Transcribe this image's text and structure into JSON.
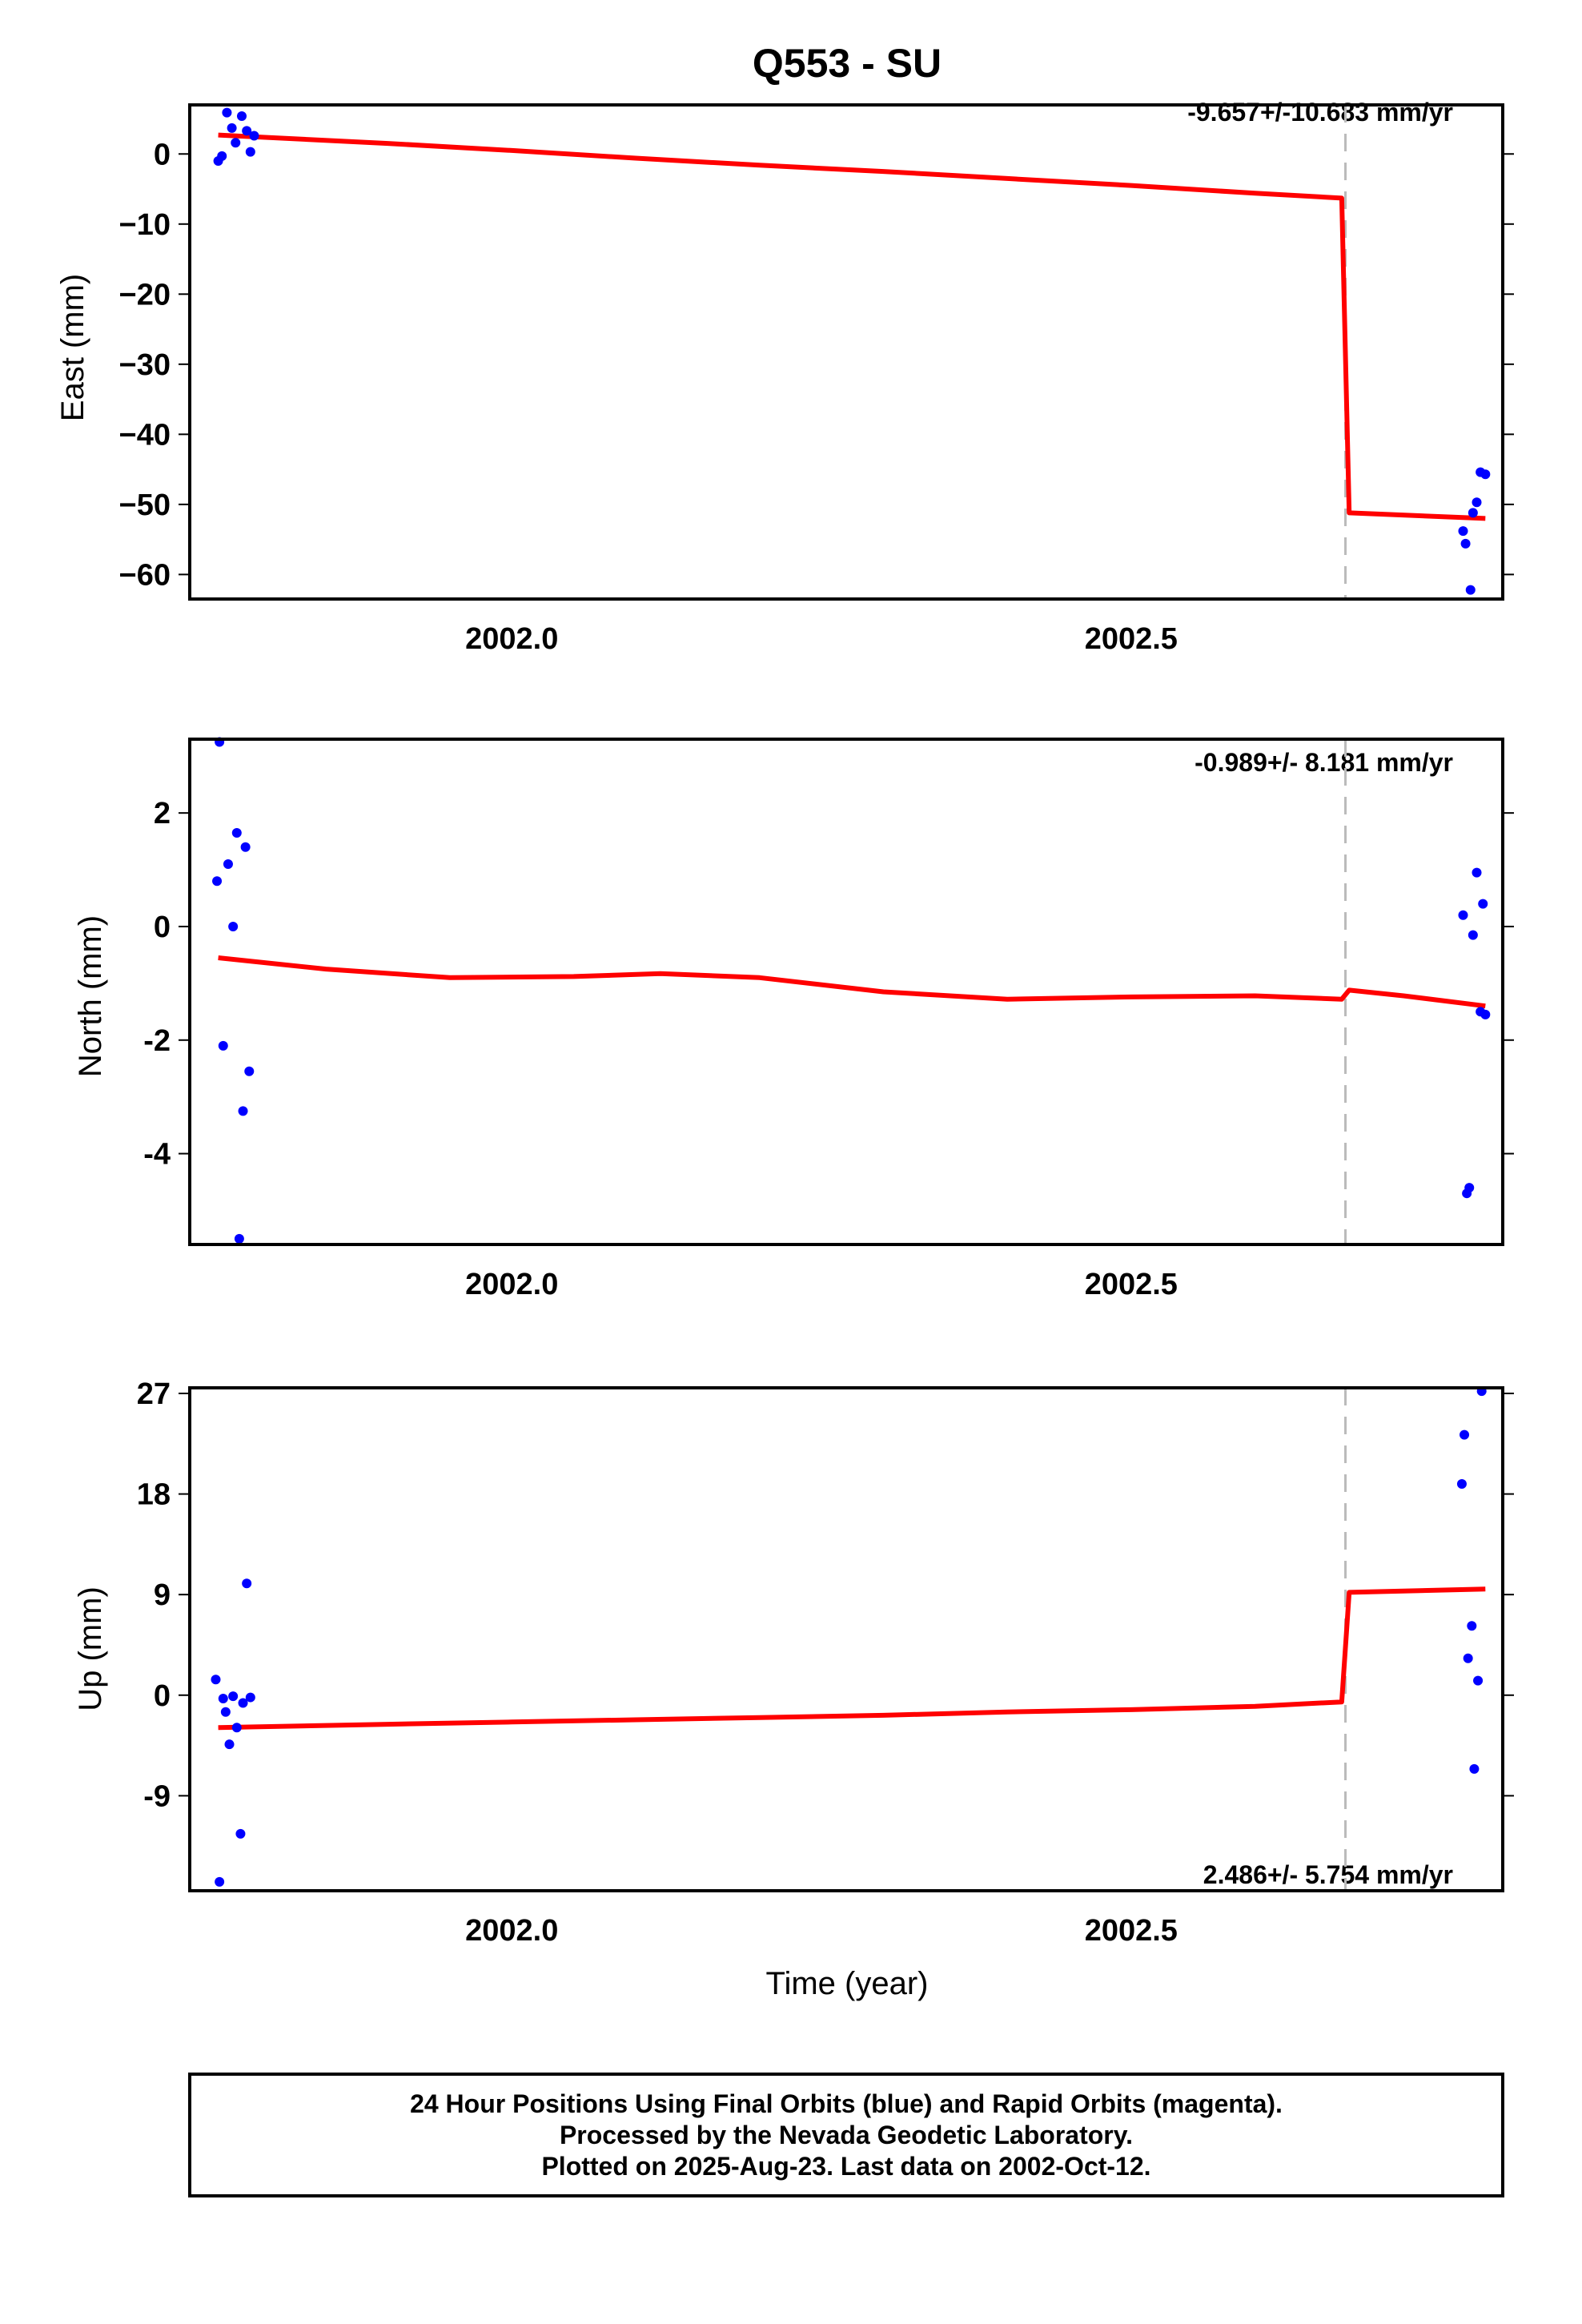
{
  "title": "Q553 - SU",
  "xlabel": "Time (year)",
  "footer": {
    "line1": "24 Hour Positions Using Final Orbits (blue) and Rapid Orbits (magenta).",
    "line2": "Processed by the Nevada Geodetic Laboratory.",
    "line3": "Plotted on 2025-Aug-23. Last data on 2002-Oct-12."
  },
  "colors": {
    "data": "#0000ff",
    "fit": "#ff0000",
    "step": "#bbbbbb",
    "frame": "#000000"
  },
  "chart_data": [
    {
      "type": "scatter",
      "ylabel": "East (mm)",
      "rate_label": "-9.657+/-10.683 mm/yr",
      "xlim": [
        2001.74,
        2002.8
      ],
      "ylim": [
        -63.5,
        7
      ],
      "x_ticks": [
        2002.0,
        2002.5
      ],
      "x_tick_labels": [
        "2002.0",
        "2002.5"
      ],
      "y_ticks": [
        0,
        -10,
        -20,
        -30,
        -40,
        -50,
        -60
      ],
      "y_tick_labels": [
        "0",
        "−10",
        "−20",
        "−30",
        "−40",
        "−50",
        "−60"
      ],
      "step_epoch": 2002.673,
      "points": {
        "x": [
          2001.763,
          2001.766,
          2001.77,
          2001.774,
          2001.777,
          2001.782,
          2001.786,
          2001.789,
          2001.792,
          2002.768,
          2002.77,
          2002.774,
          2002.776,
          2002.779,
          2002.782,
          2002.786
        ],
        "y": [
          -1.0,
          -0.3,
          5.9,
          3.7,
          1.6,
          5.4,
          3.3,
          0.3,
          2.6,
          -53.8,
          -55.6,
          -62.2,
          -51.2,
          -49.7,
          -45.4,
          -45.7
        ]
      },
      "fit": {
        "x": [
          2001.763,
          2001.9,
          2002.0,
          2002.1,
          2002.2,
          2002.3,
          2002.4,
          2002.5,
          2002.6,
          2002.67,
          2002.676,
          2002.786
        ],
        "y": [
          2.7,
          1.5,
          0.5,
          -0.6,
          -1.6,
          -2.5,
          -3.5,
          -4.5,
          -5.6,
          -6.3,
          -51.2,
          -52.0
        ]
      }
    },
    {
      "type": "scatter",
      "ylabel": "North (mm)",
      "rate_label": "-0.989+/- 8.181 mm/yr",
      "xlim": [
        2001.74,
        2002.8
      ],
      "ylim": [
        -5.6,
        3.3
      ],
      "x_ticks": [
        2002.0,
        2002.5
      ],
      "x_tick_labels": [
        "2002.0",
        "2002.5"
      ],
      "y_ticks": [
        2,
        0,
        -2,
        -4
      ],
      "y_tick_labels": [
        "2",
        "0",
        "-2",
        "-4"
      ],
      "step_epoch": 2002.673,
      "points": {
        "x": [
          2001.762,
          2001.764,
          2001.767,
          2001.771,
          2001.775,
          2001.778,
          2001.78,
          2001.783,
          2001.785,
          2001.788,
          2002.768,
          2002.771,
          2002.773,
          2002.776,
          2002.779,
          2002.782,
          2002.784,
          2002.786
        ],
        "y": [
          0.8,
          3.25,
          -2.1,
          1.1,
          0.0,
          1.65,
          -5.5,
          -3.25,
          1.4,
          -2.55,
          0.2,
          -4.7,
          -4.6,
          -0.15,
          0.95,
          -1.5,
          0.4,
          -1.55
        ]
      },
      "fit": {
        "x": [
          2001.763,
          2001.85,
          2001.95,
          2002.05,
          2002.12,
          2002.2,
          2002.3,
          2002.4,
          2002.5,
          2002.6,
          2002.67,
          2002.676,
          2002.72,
          2002.786
        ],
        "y": [
          -0.55,
          -0.75,
          -0.9,
          -0.88,
          -0.83,
          -0.9,
          -1.15,
          -1.28,
          -1.24,
          -1.22,
          -1.28,
          -1.12,
          -1.22,
          -1.4
        ]
      }
    },
    {
      "type": "scatter",
      "ylabel": "Up (mm)",
      "rate_label": "2.486+/- 5.754 mm/yr",
      "xlim": [
        2001.74,
        2002.8
      ],
      "ylim": [
        -17.5,
        27.5
      ],
      "x_ticks": [
        2002.0,
        2002.5
      ],
      "x_tick_labels": [
        "2002.0",
        "2002.5"
      ],
      "y_ticks": [
        27,
        18,
        9,
        0,
        -9
      ],
      "y_tick_labels": [
        "27",
        "18",
        "9",
        "0",
        "-9"
      ],
      "step_epoch": 2002.673,
      "points": {
        "x": [
          2001.761,
          2001.764,
          2001.767,
          2001.769,
          2001.772,
          2001.775,
          2001.778,
          2001.781,
          2001.783,
          2001.786,
          2001.789,
          2002.767,
          2002.769,
          2002.772,
          2002.775,
          2002.777,
          2002.78,
          2002.783
        ],
        "y": [
          1.4,
          -16.7,
          -0.3,
          -1.5,
          -4.4,
          -0.1,
          -2.9,
          -12.4,
          -0.7,
          10.0,
          -0.2,
          18.9,
          23.3,
          3.3,
          6.2,
          -6.6,
          1.3,
          27.2
        ]
      },
      "fit": {
        "x": [
          2001.763,
          2001.9,
          2002.0,
          2002.1,
          2002.2,
          2002.3,
          2002.4,
          2002.5,
          2002.6,
          2002.67,
          2002.676,
          2002.786
        ],
        "y": [
          -2.9,
          -2.6,
          -2.4,
          -2.2,
          -2.0,
          -1.8,
          -1.5,
          -1.3,
          -1.0,
          -0.6,
          9.2,
          9.5
        ]
      }
    }
  ]
}
